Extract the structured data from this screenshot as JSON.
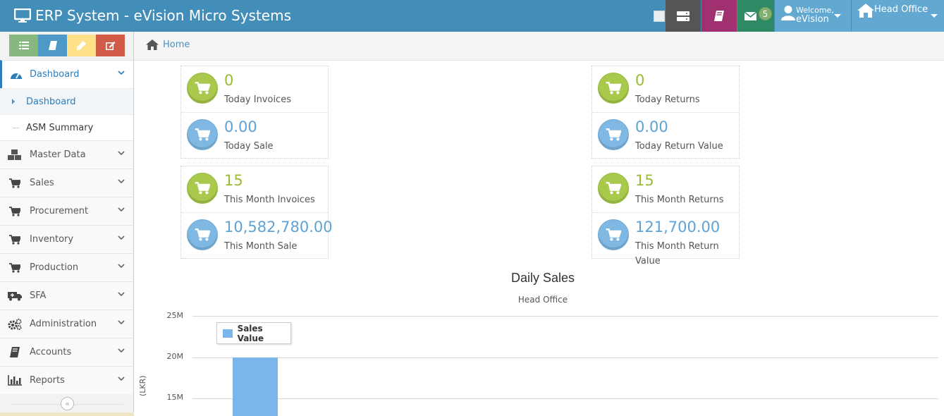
{
  "app": {
    "title": "ERP System - eVision Micro Systems"
  },
  "navbar": {
    "messages_badge": "5",
    "welcome_label": "Welcome,",
    "user_name": "eVision",
    "office_label": "Head Office"
  },
  "sidebar": {
    "items": [
      {
        "label": "Dashboard",
        "icon": "tachometer-icon",
        "active": true
      },
      {
        "label": "Master Data",
        "icon": "cubes-icon"
      },
      {
        "label": "Sales",
        "icon": "cart-icon"
      },
      {
        "label": "Procurement",
        "icon": "cart-icon"
      },
      {
        "label": "Inventory",
        "icon": "cart-icon"
      },
      {
        "label": "Production",
        "icon": "cart-icon"
      },
      {
        "label": "SFA",
        "icon": "ambulance-icon"
      },
      {
        "label": "Administration",
        "icon": "cogs-icon"
      },
      {
        "label": "Accounts",
        "icon": "book-icon"
      },
      {
        "label": "Reports",
        "icon": "bar-chart-icon"
      }
    ],
    "subitems": [
      {
        "label": "Dashboard",
        "active": true
      },
      {
        "label": "ASM Summary"
      }
    ]
  },
  "breadcrumb": {
    "home": "Home"
  },
  "stats": {
    "today_invoices": {
      "value": "0",
      "label": "Today Invoices"
    },
    "today_sale": {
      "value": "0.00",
      "label": "Today Sale"
    },
    "month_invoices": {
      "value": "15",
      "label": "This Month Invoices"
    },
    "month_sale": {
      "value": "10,582,780.00",
      "label": "This Month Sale"
    },
    "today_returns": {
      "value": "0",
      "label": "Today Returns"
    },
    "today_return_value": {
      "value": "0.00",
      "label": "Today Return Value"
    },
    "month_returns": {
      "value": "15",
      "label": "This Month Returns"
    },
    "month_return_value": {
      "value": "121,700.00",
      "label": "This Month Return Value"
    }
  },
  "chart_data": {
    "type": "bar",
    "title": "Daily Sales",
    "subtitle": "Head Office",
    "ylabel": "(LKR)",
    "yticks": [
      "25M",
      "20M",
      "15M"
    ],
    "ylim_visible": [
      15000000,
      25000000
    ],
    "series": [
      {
        "name": "Sales Value",
        "values": [
          20000000
        ]
      }
    ],
    "legend": "top-left",
    "colors": {
      "bar": "#7cb5ec"
    }
  },
  "colors": {
    "navbar": "#438eb9",
    "accent": "#2b7dbc",
    "stat_green": "#9abc32",
    "stat_blue": "#5ea3d3"
  }
}
